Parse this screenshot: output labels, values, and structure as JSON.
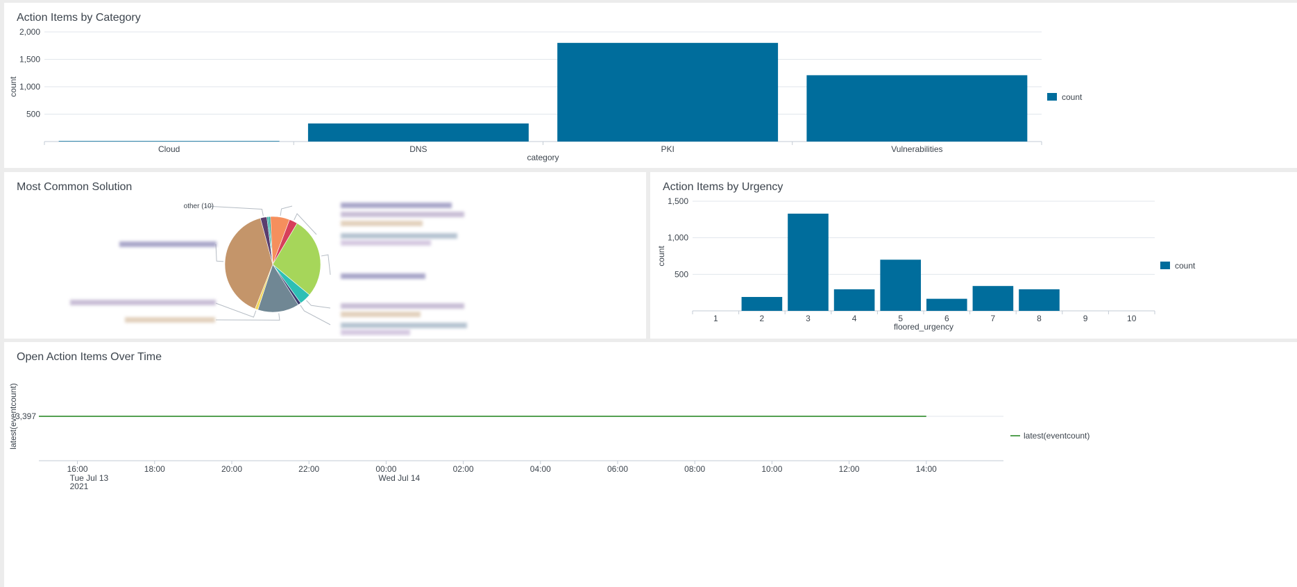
{
  "colors": {
    "bar": "#006d9c",
    "line": "#53a051",
    "grid": "#e1e6eb",
    "axis": "#c3cbd4",
    "panel_bg": "#ffffff",
    "page_bg": "#ececec"
  },
  "panels": {
    "category": {
      "title": "Action Items by Category"
    },
    "solution": {
      "title": "Most Common Solution"
    },
    "urgency": {
      "title": "Action Items by Urgency"
    },
    "timeline": {
      "title": "Open Action Items Over Time"
    }
  },
  "chart_data": [
    {
      "id": "category",
      "type": "bar",
      "title": "Action Items by Category",
      "xlabel": "category",
      "ylabel": "count",
      "categories": [
        "Cloud",
        "DNS",
        "PKI",
        "Vulnerabilities"
      ],
      "series": [
        {
          "name": "count",
          "values": [
            10,
            330,
            1800,
            1210
          ]
        }
      ],
      "ylim": [
        0,
        2000
      ],
      "yticks": [
        500,
        1000,
        1500,
        2000
      ],
      "ytick_labels": [
        "500",
        "1,000",
        "1,500",
        "2,000"
      ],
      "legend": "right",
      "grid": true
    },
    {
      "id": "solution",
      "type": "pie",
      "title": "Most Common Solution",
      "labels": [
        "other (10)"
      ],
      "note_unreadable_labels": "",
      "slices": [
        {
          "label": "other (10)",
          "value": 2.2,
          "color": "#5a3e6e"
        },
        {
          "label": "",
          "value": 0.6,
          "color": "#2db2a5"
        },
        {
          "label": "",
          "value": 0.6,
          "color": "#1f9e8e"
        },
        {
          "label": "",
          "value": 6.5,
          "color": "#f58f5d"
        },
        {
          "label": "",
          "value": 2.8,
          "color": "#d6405a"
        },
        {
          "label": "",
          "value": 27.5,
          "color": "#a6d65a"
        },
        {
          "label": "",
          "value": 4.0,
          "color": "#2ebfb5"
        },
        {
          "label": "",
          "value": 1.0,
          "color": "#3c3b6e"
        },
        {
          "label": "",
          "value": 14.0,
          "color": "#708794"
        },
        {
          "label": "",
          "value": 1.0,
          "color": "#f2d75c"
        },
        {
          "label": "",
          "value": 39.8,
          "color": "#c4956a"
        }
      ]
    },
    {
      "id": "urgency",
      "type": "bar",
      "title": "Action Items by Urgency",
      "xlabel": "floored_urgency",
      "ylabel": "count",
      "categories": [
        "1",
        "2",
        "3",
        "4",
        "5",
        "6",
        "7",
        "8",
        "9",
        "10"
      ],
      "series": [
        {
          "name": "count",
          "values": [
            0,
            190,
            1330,
            295,
            700,
            165,
            340,
            295,
            0,
            0
          ]
        }
      ],
      "ylim": [
        0,
        1500
      ],
      "yticks": [
        500,
        1000,
        1500
      ],
      "ytick_labels": [
        "500",
        "1,000",
        "1,500"
      ],
      "legend": "right",
      "grid": true
    },
    {
      "id": "timeline",
      "type": "line",
      "title": "Open Action Items Over Time",
      "ylabel": "latest(eventcount)",
      "series": [
        {
          "name": "latest(eventcount)",
          "x_start": "Tue Jul 13 2021 15:00",
          "x_end": "Wed Jul 14 2021 14:00",
          "value": 3397
        }
      ],
      "ytick_labels": [
        "3,397"
      ],
      "xticks": [
        "16:00",
        "18:00",
        "20:00",
        "22:00",
        "00:00",
        "02:00",
        "04:00",
        "06:00",
        "08:00",
        "10:00",
        "12:00",
        "14:00"
      ],
      "xtick_sublabels": {
        "16:00": [
          "Tue Jul 13",
          "2021"
        ],
        "00:00": [
          "Wed Jul 14"
        ]
      },
      "legend": "right",
      "grid": true
    }
  ]
}
